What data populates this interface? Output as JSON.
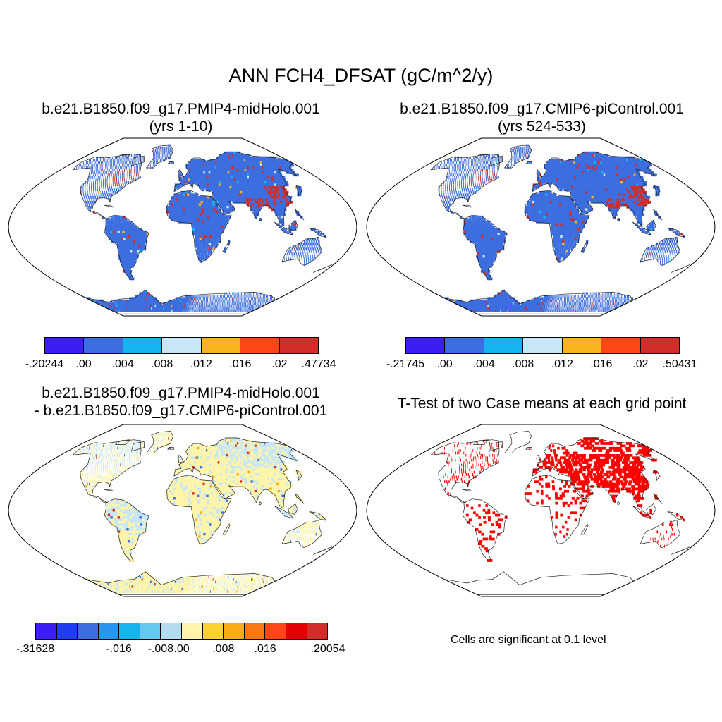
{
  "title": "ANN FCH4_DFSAT (gC/m^2/y)",
  "panels": [
    {
      "title_line1": "b.e21.B1850.f09_g17.PMIP4-midHolo.001",
      "title_line2": "(yrs 1-10)"
    },
    {
      "title_line1": "b.e21.B1850.f09_g17.CMIP6-piControl.001",
      "title_line2": "(yrs 524-533)"
    },
    {
      "title_line1": "b.e21.B1850.f09_g17.PMIP4-midHolo.001",
      "title_line2": "- b.e21.B1850.f09_g17.CMIP6-piControl.001"
    },
    {
      "title_line1": "T-Test of two Case means at each grid point",
      "title_line2": ""
    }
  ],
  "colorbars": [
    {
      "colors": [
        "#3c1ef5",
        "#3c6ee0",
        "#14b4f0",
        "#c8e6f5",
        "#fab41e",
        "#ff4614",
        "#d22d28"
      ],
      "labels": [
        "-.20244",
        ".00",
        ".004",
        ".008",
        ".012",
        ".016",
        ".02",
        ".47734"
      ]
    },
    {
      "colors": [
        "#3c1ef5",
        "#3c6ee0",
        "#14b4f0",
        "#c8e6f5",
        "#fab41e",
        "#ff4614",
        "#d22d28"
      ],
      "labels": [
        "-.21745",
        ".00",
        ".004",
        ".008",
        ".012",
        ".016",
        ".02",
        ".50431"
      ]
    },
    {
      "colors": [
        "#3c1ef5",
        "#1e3cf0",
        "#3c6ee0",
        "#2896f0",
        "#14b4f0",
        "#64c8f0",
        "#b4dcf0",
        "#fff5aa",
        "#fad232",
        "#faaa14",
        "#fa7814",
        "#ff4614",
        "#e60000",
        "#d22d28"
      ],
      "labels": [
        "-.31628",
        "-.016",
        "-.008",
        ".00",
        ".008",
        ".016",
        ".20054"
      ]
    }
  ],
  "significance_note": "Cells are significant at 0.1 level",
  "colors": {
    "land_base": "#3c6ee0",
    "diff_base": "#fff5aa",
    "diff_alt": "#c8e6f5",
    "signif": "#ff0000"
  }
}
